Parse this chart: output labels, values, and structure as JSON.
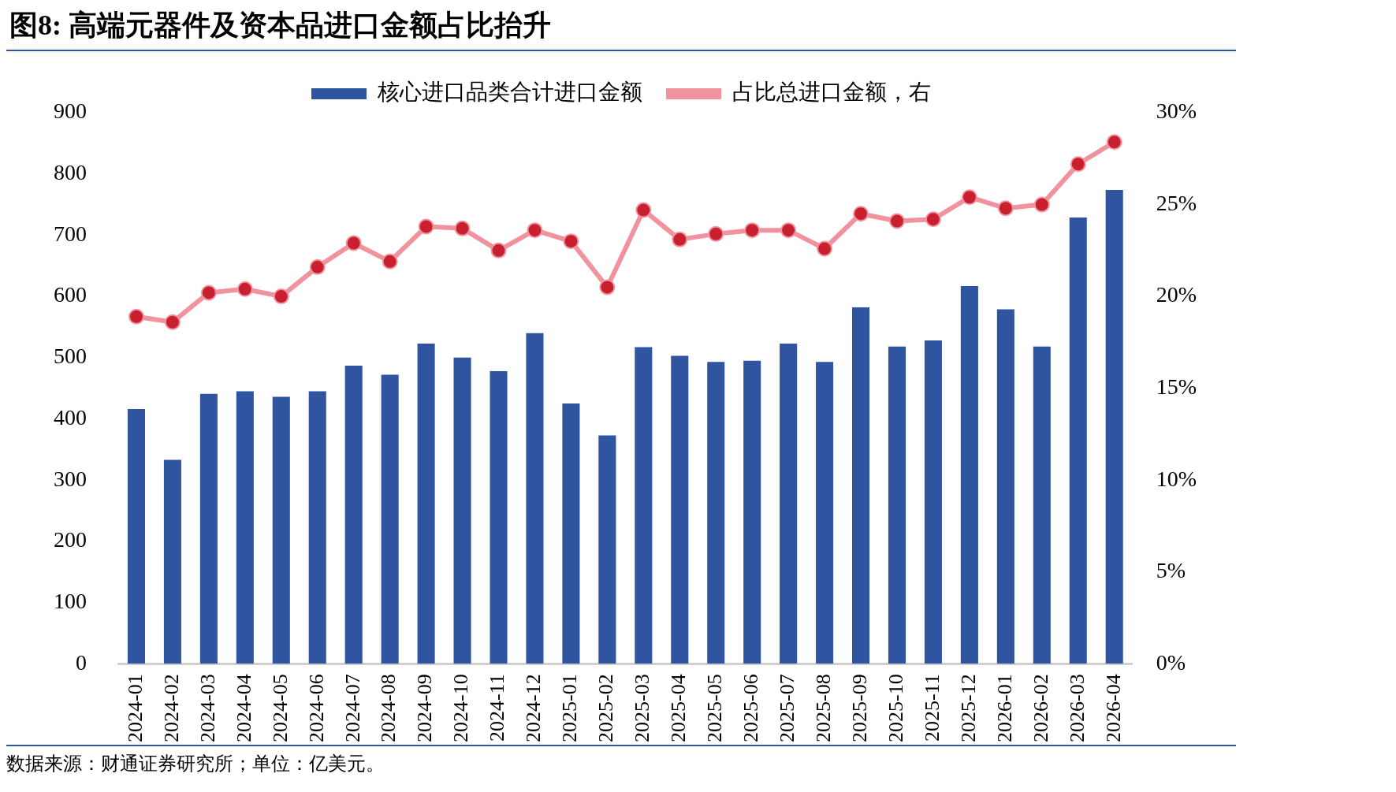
{
  "chart_data": {
    "type": "bar",
    "title": "图8: 高端元器件及资本品进口金额占比抬升",
    "categories": [
      "2024-01",
      "2024-02",
      "2024-03",
      "2024-04",
      "2024-05",
      "2024-06",
      "2024-07",
      "2024-08",
      "2024-09",
      "2024-10",
      "2024-11",
      "2024-12",
      "2025-01",
      "2025-02",
      "2025-03",
      "2025-04",
      "2025-05",
      "2025-06",
      "2025-07",
      "2025-08",
      "2025-09",
      "2025-10",
      "2025-11",
      "2025-12",
      "2026-01",
      "2026-02",
      "2026-03",
      "2026-04"
    ],
    "series": [
      {
        "name": "核心进口品类合计进口金额",
        "color": "#2f54a0",
        "values": [
          416,
          333,
          441,
          445,
          436,
          445,
          487,
          472,
          523,
          500,
          478,
          540,
          425,
          373,
          517,
          503,
          493,
          495,
          523,
          493,
          582,
          518,
          528,
          617,
          579,
          518,
          729,
          774
        ]
      },
      {
        "name": "占比总进口金额，右",
        "type": "line",
        "axis": "y2",
        "color": "#f0939e",
        "values": [
          18.9,
          18.6,
          20.2,
          20.4,
          20.0,
          21.6,
          22.9,
          21.9,
          23.8,
          23.7,
          22.5,
          23.6,
          23.0,
          20.5,
          24.7,
          23.1,
          23.4,
          23.6,
          23.6,
          22.6,
          24.5,
          24.1,
          24.2,
          25.4,
          24.8,
          25.0,
          27.2,
          28.4
        ]
      }
    ],
    "ylim": [
      0,
      900
    ],
    "yticks": [
      0,
      100,
      200,
      300,
      400,
      500,
      600,
      700,
      800,
      900
    ],
    "y2lim": [
      0,
      30
    ],
    "y2ticks": [
      {
        "value": 0,
        "label": "0%"
      },
      {
        "value": 5,
        "label": "5%"
      },
      {
        "value": 10,
        "label": "10%"
      },
      {
        "value": 15,
        "label": "15%"
      },
      {
        "value": 20,
        "label": "20%"
      },
      {
        "value": 25,
        "label": "25%"
      },
      {
        "value": 30,
        "label": "30%"
      }
    ],
    "grid": false,
    "legend": "top",
    "marker": "circle",
    "annotations": [
      "数据来源：财通证券研究所；单位：亿美元。"
    ]
  }
}
